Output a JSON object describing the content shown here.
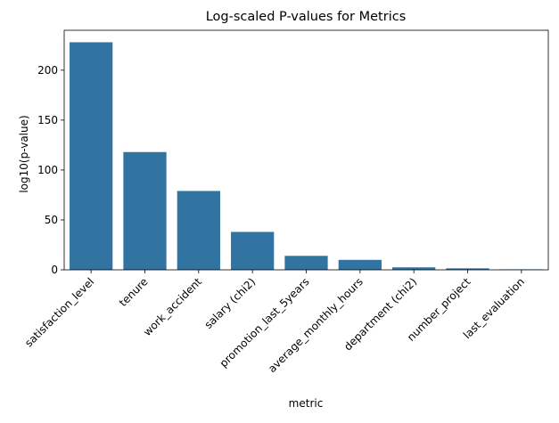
{
  "chart_data": {
    "type": "bar",
    "title": "Log-scaled P-values for Metrics",
    "xlabel": "metric",
    "ylabel": "log10(p-value)",
    "categories": [
      "satisfaction_level",
      "tenure",
      "work_accident",
      "salary (chi2)",
      "promotion_last_5years",
      "average_monthly_hours",
      "department (chi2)",
      "number_project",
      "last_evaluation"
    ],
    "values": [
      228,
      118,
      79,
      38,
      14,
      10,
      2.5,
      1.5,
      0.5
    ],
    "ylim": [
      0,
      240
    ],
    "yticks": [
      0,
      50,
      100,
      150,
      200
    ],
    "grid": false,
    "legend": "none",
    "colors": {
      "bar": "#3274a1",
      "axis": "#000000"
    }
  }
}
